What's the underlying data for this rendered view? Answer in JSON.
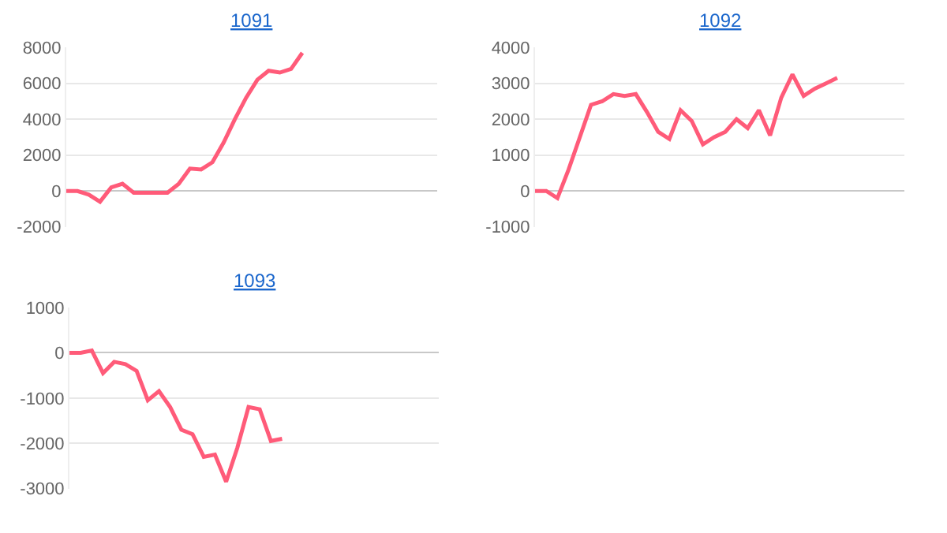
{
  "chart_data": [
    {
      "type": "line",
      "title": "1091",
      "tick_labels": "y",
      "grid": "y",
      "categories": [
        null,
        null,
        null,
        null,
        null,
        null,
        null,
        null,
        null,
        null,
        null,
        null,
        null,
        null,
        null,
        null,
        null,
        null,
        null,
        null,
        null,
        null,
        null,
        null,
        null,
        null,
        null,
        null,
        null,
        null,
        null,
        null,
        null,
        null
      ],
      "series": [
        {
          "color": "#ff5b79",
          "values": [
            0,
            0,
            -200,
            -600,
            200,
            400,
            -100,
            -100,
            -100,
            -100,
            400,
            1250,
            1200,
            1600,
            2700,
            4000,
            5200,
            6200,
            6700,
            6600,
            6800,
            7700,
            null,
            null,
            null,
            null,
            null,
            null,
            null,
            null,
            null,
            null,
            null,
            null
          ]
        }
      ],
      "ylim": [
        -2000,
        8000
      ],
      "yticks": [
        -2000,
        0,
        2000,
        4000,
        6000,
        8000
      ]
    },
    {
      "type": "line",
      "title": "1092",
      "tick_labels": "y",
      "grid": "y",
      "categories": [
        null,
        null,
        null,
        null,
        null,
        null,
        null,
        null,
        null,
        null,
        null,
        null,
        null,
        null,
        null,
        null,
        null,
        null,
        null,
        null,
        null,
        null,
        null,
        null,
        null,
        null,
        null,
        null,
        null,
        null,
        null,
        null,
        null,
        null
      ],
      "series": [
        {
          "color": "#ff5b79",
          "values": [
            0,
            0,
            -200,
            600,
            1500,
            2400,
            2500,
            2700,
            2650,
            2700,
            2200,
            1650,
            1450,
            2250,
            1950,
            1300,
            1500,
            1650,
            2000,
            1750,
            2250,
            1550,
            2600,
            3250,
            2650,
            2850,
            3000,
            3150,
            null,
            null,
            null,
            null,
            null,
            null
          ]
        }
      ],
      "ylim": [
        -1000,
        4000
      ],
      "yticks": [
        -1000,
        0,
        1000,
        2000,
        3000,
        4000
      ]
    },
    {
      "type": "line",
      "title": "1093",
      "tick_labels": "y",
      "grid": "y",
      "categories": [
        null,
        null,
        null,
        null,
        null,
        null,
        null,
        null,
        null,
        null,
        null,
        null,
        null,
        null,
        null,
        null,
        null,
        null,
        null,
        null,
        null,
        null,
        null,
        null,
        null,
        null,
        null,
        null,
        null,
        null,
        null,
        null,
        null,
        null
      ],
      "series": [
        {
          "color": "#ff5b79",
          "values": [
            0,
            0,
            50,
            -450,
            -200,
            -250,
            -400,
            -1050,
            -850,
            -1200,
            -1700,
            -1800,
            -2300,
            -2250,
            -2850,
            -2100,
            -1200,
            -1250,
            -1950,
            -1900,
            null,
            null,
            null,
            null,
            null,
            null,
            null,
            null,
            null,
            null,
            null,
            null,
            null,
            null
          ]
        }
      ],
      "ylim": [
        -3000,
        1000
      ],
      "yticks": [
        -3000,
        -2000,
        -1000,
        0,
        1000
      ]
    }
  ]
}
